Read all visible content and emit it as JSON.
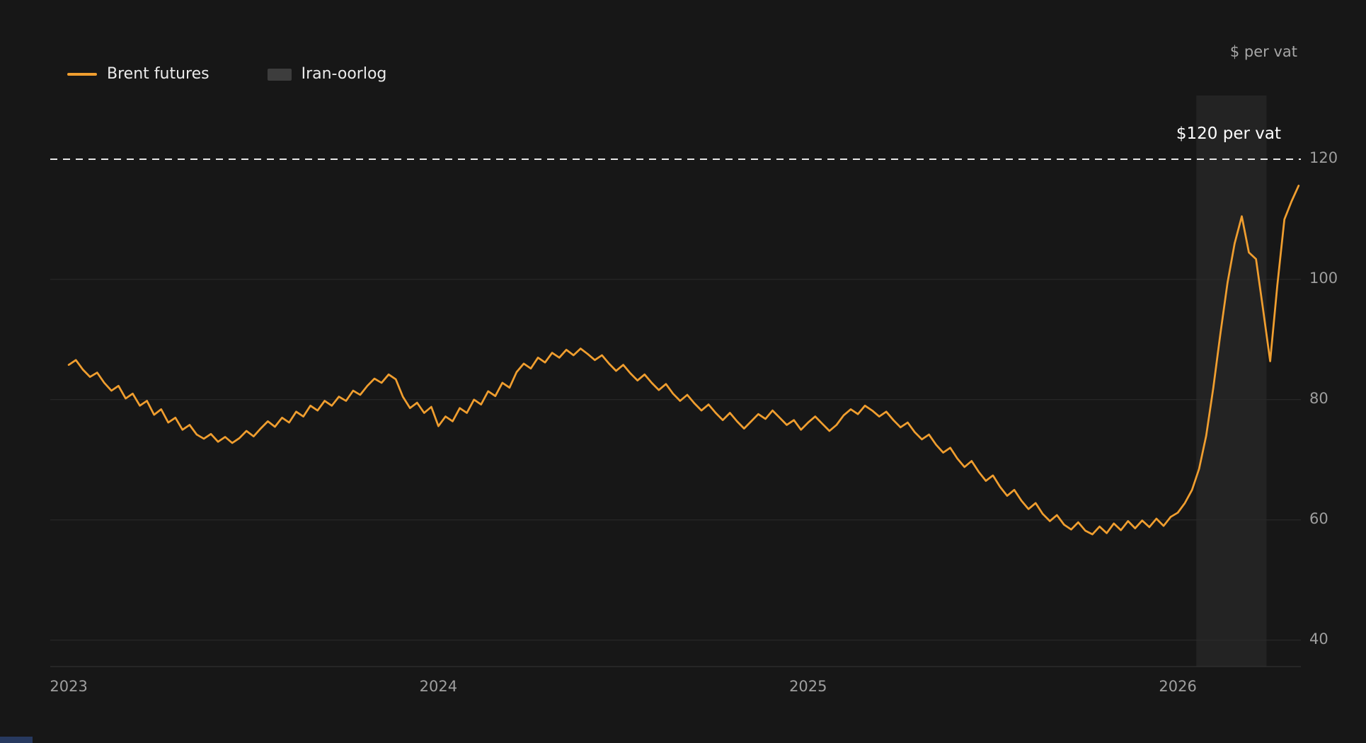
{
  "chart": {
    "unit_label": "$ per vat",
    "reference_label": "$120 per vat"
  },
  "legend": {
    "items": [
      {
        "label": "Brent futures",
        "swatch": "line",
        "color": "#F09E2F"
      },
      {
        "label": "Iran-oorlog",
        "swatch": "box",
        "color": "#3D3D3D"
      }
    ]
  },
  "chart_data": {
    "type": "line",
    "title": "",
    "unit": "$ per vat",
    "grid": "horizontal",
    "legend_position": "top-left",
    "x_tick_labels": [
      "2023",
      "2024",
      "2025",
      "2026"
    ],
    "x_tick_values": [
      2023,
      2024,
      2025,
      2026
    ],
    "y_tick_values": [
      120,
      100,
      80,
      60,
      40
    ],
    "xlim": [
      2022.95,
      2026.333
    ],
    "ylim": [
      35.6,
      130.6
    ],
    "reference_line": {
      "value": 120,
      "label": "$120 per vat",
      "color": "#E8E8E8",
      "style": "dashed"
    },
    "band": {
      "label": "Iran-oorlog",
      "from": 2026.05,
      "to": 2026.24,
      "color": "rgba(255,255,255,0.055)"
    },
    "series": [
      {
        "name": "Brent futures",
        "color": "#F09E2F",
        "x_unit": "year",
        "x_start": 2023.0,
        "x_step": 0.0192307692,
        "values": [
          85.8,
          86.6,
          85.0,
          83.8,
          84.5,
          82.8,
          81.5,
          82.3,
          80.2,
          81.0,
          79.0,
          79.8,
          77.5,
          78.4,
          76.2,
          77.0,
          75.0,
          75.8,
          74.2,
          73.5,
          74.3,
          73.0,
          73.8,
          72.8,
          73.6,
          74.8,
          73.9,
          75.2,
          76.4,
          75.5,
          77.0,
          76.2,
          78.0,
          77.2,
          79.0,
          78.2,
          79.8,
          79.0,
          80.5,
          79.8,
          81.5,
          80.8,
          82.3,
          83.5,
          82.8,
          84.2,
          83.4,
          80.5,
          78.6,
          79.5,
          77.8,
          78.8,
          75.6,
          77.2,
          76.4,
          78.6,
          77.8,
          80.0,
          79.2,
          81.4,
          80.6,
          82.8,
          82.0,
          84.6,
          86.0,
          85.2,
          87.0,
          86.2,
          87.8,
          87.0,
          88.3,
          87.4,
          88.5,
          87.6,
          86.6,
          87.4,
          86.0,
          84.8,
          85.8,
          84.4,
          83.2,
          84.2,
          82.8,
          81.6,
          82.6,
          81.0,
          79.8,
          80.8,
          79.4,
          78.2,
          79.2,
          77.8,
          76.6,
          77.8,
          76.4,
          75.2,
          76.4,
          77.6,
          76.8,
          78.2,
          77.0,
          75.8,
          76.6,
          75.0,
          76.2,
          77.2,
          76.0,
          74.8,
          75.8,
          77.4,
          78.4,
          77.6,
          79.0,
          78.2,
          77.2,
          78.0,
          76.6,
          75.4,
          76.2,
          74.6,
          73.4,
          74.2,
          72.5,
          71.2,
          72.0,
          70.2,
          68.8,
          69.8,
          68.0,
          66.5,
          67.4,
          65.5,
          64.0,
          65.0,
          63.2,
          61.8,
          62.8,
          61.0,
          59.8,
          60.8,
          59.2,
          58.4,
          59.6,
          58.2,
          57.6,
          58.9,
          57.8,
          59.4,
          58.3,
          59.8,
          58.6,
          59.9,
          58.8,
          60.2,
          59.0,
          60.5,
          61.2,
          62.8,
          65.0,
          68.5,
          74.0,
          82.0,
          91.0,
          99.5,
          106.0,
          110.5,
          104.5,
          103.4,
          95.0,
          86.4,
          99.0,
          110.0,
          113.0,
          115.6
        ]
      }
    ]
  }
}
